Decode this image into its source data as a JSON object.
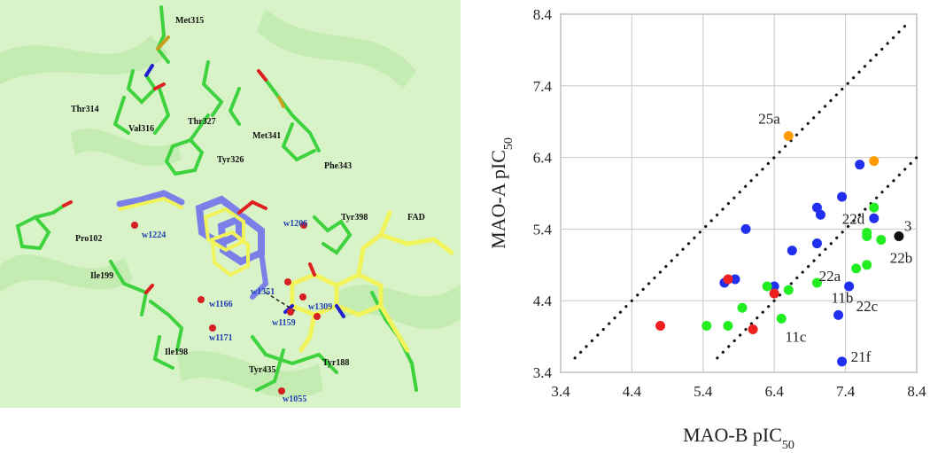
{
  "structure_panel": {
    "residue_labels": [
      "Met315",
      "Thr314",
      "Val316",
      "Thr327",
      "Met341",
      "Tyr326",
      "Phe343",
      "Pro102",
      "Ile199",
      "Ile198",
      "Tyr398",
      "FAD",
      "Tyr435",
      "Tyr188"
    ],
    "water_labels": [
      "w1224",
      "w1206",
      "w1351",
      "w1166",
      "w1309",
      "w1159",
      "w1171",
      "w1055"
    ],
    "colors": {
      "background": "#d8f3c8",
      "carbon_ligand": "#f1f35a",
      "carbon_protein": "#3fd23f",
      "ligand_overlay": "#7b80e8",
      "oxygen": "#e02020",
      "nitrogen": "#2020d0",
      "water": "#d42020"
    }
  },
  "chart_data": {
    "type": "scatter",
    "xlabel": "MAO-B pIC",
    "xlabel_sub": "50",
    "ylabel": "MAO-A pIC",
    "ylabel_sub": "50",
    "xlim": [
      3.4,
      8.4
    ],
    "ylim": [
      3.4,
      8.4
    ],
    "xticks": [
      "3.4",
      "4.4",
      "5.4",
      "6.4",
      "7.4",
      "8.4"
    ],
    "yticks": [
      "3.4",
      "4.4",
      "5.4",
      "6.4",
      "7.4",
      "8.4"
    ],
    "grid": true,
    "reference_lines": [
      {
        "style": "dotted",
        "x": [
          3.6,
          8.3
        ],
        "y": [
          3.6,
          8.3
        ]
      },
      {
        "style": "dotted",
        "x": [
          5.6,
          8.4
        ],
        "y": [
          3.6,
          6.4
        ]
      }
    ],
    "series": [
      {
        "color": "#ff9900",
        "points": [
          [
            6.6,
            6.7
          ],
          [
            7.8,
            6.35
          ]
        ]
      },
      {
        "color": "#2030ee",
        "points": [
          [
            7.6,
            6.3
          ],
          [
            7.35,
            5.85
          ],
          [
            7.0,
            5.7
          ],
          [
            7.05,
            5.6
          ],
          [
            7.8,
            5.55
          ],
          [
            6.0,
            5.4
          ],
          [
            7.0,
            5.2
          ],
          [
            6.65,
            5.1
          ],
          [
            5.85,
            4.7
          ],
          [
            5.7,
            4.65
          ],
          [
            6.4,
            4.6
          ],
          [
            7.45,
            4.6
          ],
          [
            7.3,
            4.2
          ],
          [
            7.35,
            3.55
          ]
        ]
      },
      {
        "color": "#22ee22",
        "points": [
          [
            7.8,
            5.7
          ],
          [
            7.7,
            5.35
          ],
          [
            7.7,
            5.3
          ],
          [
            7.9,
            5.25
          ],
          [
            7.7,
            4.9
          ],
          [
            7.55,
            4.85
          ],
          [
            7.0,
            4.65
          ],
          [
            6.3,
            4.6
          ],
          [
            6.6,
            4.55
          ],
          [
            6.4,
            4.5
          ],
          [
            5.95,
            4.3
          ],
          [
            6.5,
            4.15
          ],
          [
            5.45,
            4.05
          ],
          [
            5.75,
            4.05
          ]
        ]
      },
      {
        "color": "#ee2020",
        "points": [
          [
            5.75,
            4.7
          ],
          [
            6.4,
            4.5
          ],
          [
            4.8,
            4.05
          ],
          [
            6.1,
            4.0
          ]
        ]
      },
      {
        "color": "#111111",
        "points": [
          [
            8.15,
            5.3
          ]
        ]
      }
    ],
    "point_labels": [
      {
        "text": "25a",
        "x": 6.6,
        "y": 6.7
      },
      {
        "text": "3",
        "x": 8.15,
        "y": 5.3
      },
      {
        "text": "22d",
        "x": 7.7,
        "y": 5.3
      },
      {
        "text": "22b",
        "x": 7.9,
        "y": 5.25
      },
      {
        "text": "22a",
        "x": 7.55,
        "y": 4.85
      },
      {
        "text": "22c",
        "x": 7.45,
        "y": 4.6
      },
      {
        "text": "11b",
        "x": 7.3,
        "y": 4.2
      },
      {
        "text": "11c",
        "x": 7.3,
        "y": 4.2
      },
      {
        "text": "21f",
        "x": 7.35,
        "y": 3.55
      }
    ]
  }
}
